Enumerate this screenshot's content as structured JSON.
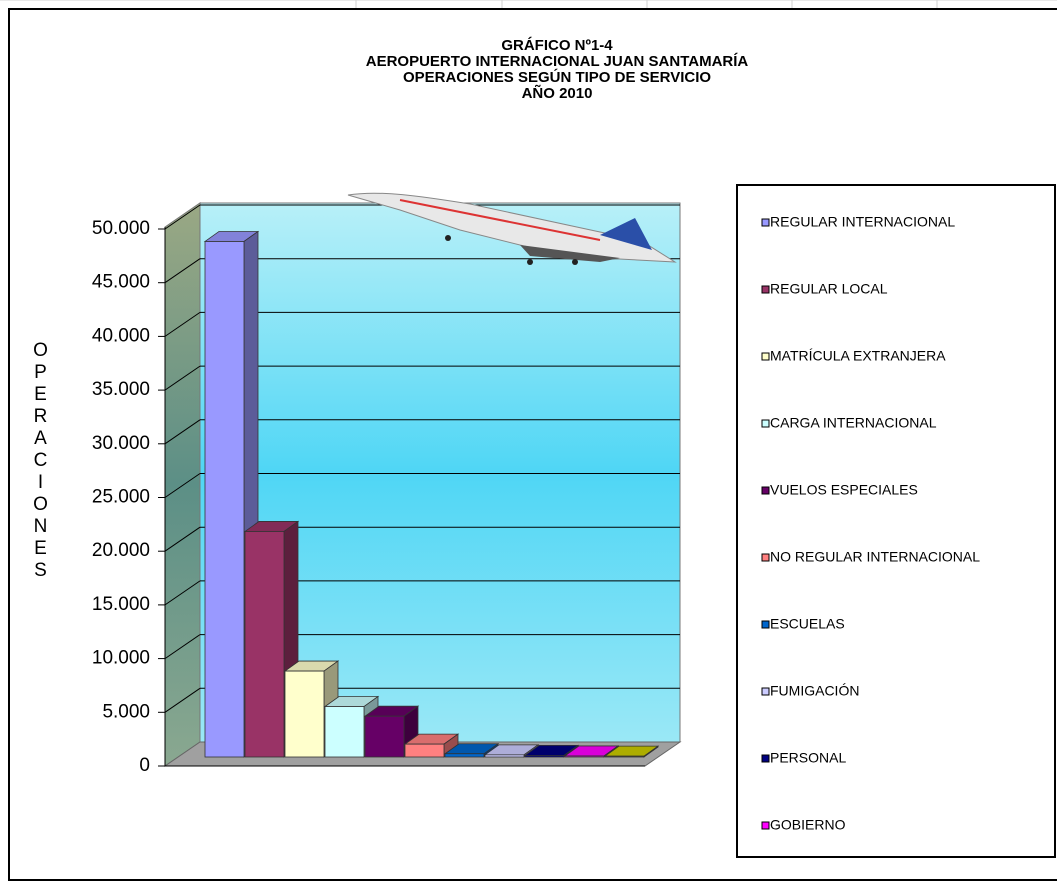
{
  "chart_data": {
    "type": "bar",
    "title": [
      "GRÁFICO Nº1-4",
      "AEROPUERTO INTERNACIONAL JUAN SANTAMARÍA",
      "OPERACIONES SEGÚN TIPO DE SERVICIO",
      "AÑO 2010"
    ],
    "y_label": "OPERACIONES",
    "ylim": [
      0,
      50000
    ],
    "yticks": [
      0,
      {
        "value": 5000,
        "label": "5.000"
      },
      {
        "value": 10000,
        "label": "10.000"
      },
      {
        "value": 15000,
        "label": "15.000"
      },
      {
        "value": 20000,
        "label": "20.000"
      },
      {
        "value": 25000,
        "label": "25.000"
      },
      {
        "value": 30000,
        "label": "30.000"
      },
      {
        "value": 35000,
        "label": "35.000"
      },
      {
        "value": 40000,
        "label": "40.000"
      },
      {
        "value": 45000,
        "label": "45.000"
      },
      {
        "value": 50000,
        "label": "50.000"
      }
    ],
    "grid": true,
    "legend": "right",
    "series": [
      {
        "name": "REGULAR INTERNACIONAL",
        "color": "#9999ff",
        "values": [
          48000
        ]
      },
      {
        "name": "REGULAR LOCAL",
        "color": "#993366",
        "values": [
          21000
        ]
      },
      {
        "name": "MATRÍCULA EXTRANJERA",
        "color": "#ffffcc",
        "values": [
          8000
        ]
      },
      {
        "name": "CARGA INTERNACIONAL",
        "color": "#ccffff",
        "values": [
          4700
        ]
      },
      {
        "name": "VUELOS ESPECIALES",
        "color": "#660066",
        "values": [
          3800
        ]
      },
      {
        "name": "NO REGULAR INTERNACIONAL",
        "color": "#ff8080",
        "values": [
          1200
        ]
      },
      {
        "name": "ESCUELAS",
        "color": "#0066cc",
        "values": [
          300
        ]
      },
      {
        "name": "FUMIGACIÓN",
        "color": "#ccccff",
        "values": [
          200
        ]
      },
      {
        "name": "PERSONAL",
        "color": "#000080",
        "values": [
          150
        ]
      },
      {
        "name": "GOBIERNO",
        "color": "#ff00ff",
        "values": [
          100
        ]
      },
      {
        "name": null,
        "color": "#cccc00",
        "values": [
          80
        ]
      }
    ]
  }
}
